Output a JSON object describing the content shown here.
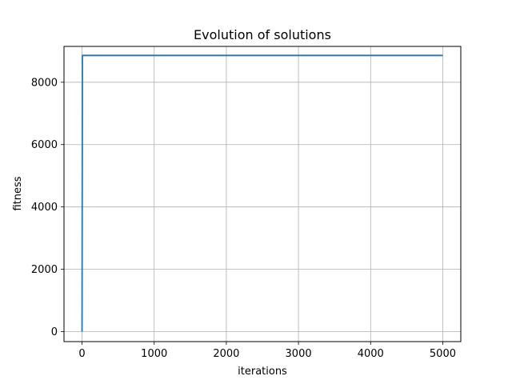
{
  "chart_data": {
    "type": "line",
    "title": "Evolution of solutions",
    "xlabel": "iterations",
    "ylabel": "fitness",
    "xlim": [
      -250,
      5250
    ],
    "ylim": [
      -320,
      9150
    ],
    "xticks": [
      0,
      1000,
      2000,
      3000,
      4000,
      5000
    ],
    "yticks": [
      0,
      2000,
      4000,
      6000,
      8000
    ],
    "grid": true,
    "series": [
      {
        "color": "#1f77b4",
        "x": [
          0,
          5,
          10,
          5000
        ],
        "y": [
          0,
          8860,
          8860,
          8860
        ]
      }
    ]
  }
}
